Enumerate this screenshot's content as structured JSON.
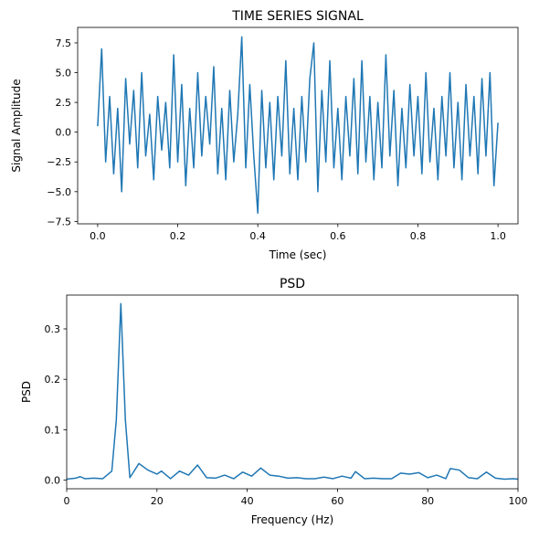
{
  "chart_data": [
    {
      "type": "line",
      "title": "TIME SERIES SIGNAL",
      "xlabel": "Time (sec)",
      "ylabel": "Signal Amplitude",
      "x": [
        0,
        0.01,
        0.02,
        0.03,
        0.04,
        0.05,
        0.06,
        0.07,
        0.08,
        0.09,
        0.1,
        0.11,
        0.12,
        0.13,
        0.14,
        0.15,
        0.16,
        0.17,
        0.18,
        0.19,
        0.2,
        0.21,
        0.22,
        0.23,
        0.24,
        0.25,
        0.26,
        0.27,
        0.28,
        0.29,
        0.3,
        0.31,
        0.32,
        0.33,
        0.34,
        0.35,
        0.36,
        0.37,
        0.38,
        0.39,
        0.4,
        0.41,
        0.42,
        0.43,
        0.44,
        0.45,
        0.46,
        0.47,
        0.48,
        0.49,
        0.5,
        0.51,
        0.52,
        0.53,
        0.54,
        0.55,
        0.56,
        0.57,
        0.58,
        0.59,
        0.6,
        0.61,
        0.62,
        0.63,
        0.64,
        0.65,
        0.66,
        0.67,
        0.68,
        0.69,
        0.7,
        0.71,
        0.72,
        0.73,
        0.74,
        0.75,
        0.76,
        0.77,
        0.78,
        0.79,
        0.8,
        0.81,
        0.82,
        0.83,
        0.84,
        0.85,
        0.86,
        0.87,
        0.88,
        0.89,
        0.9,
        0.91,
        0.92,
        0.93,
        0.94,
        0.95,
        0.96,
        0.97,
        0.98,
        0.99,
        1.0
      ],
      "series": [
        {
          "color": "#1f77b4",
          "values": [
            0.5,
            7.0,
            -2.5,
            3.0,
            -3.5,
            2.0,
            -5.0,
            4.5,
            -1.0,
            3.5,
            -3.0,
            5.0,
            -2.0,
            1.5,
            -4.0,
            3.0,
            -1.5,
            2.5,
            -3.0,
            6.5,
            -2.5,
            4.0,
            -4.5,
            2.0,
            -3.0,
            5.0,
            -2.0,
            3.0,
            -1.0,
            5.5,
            -3.5,
            2.0,
            -4.0,
            3.5,
            -2.5,
            1.5,
            8.0,
            -3.0,
            4.0,
            -2.0,
            -6.8,
            3.5,
            -3.0,
            2.5,
            -4.0,
            3.0,
            -2.0,
            6.0,
            -3.5,
            2.0,
            -4.0,
            3.0,
            -2.5,
            4.5,
            7.5,
            -5.0,
            3.5,
            -2.5,
            6.0,
            -3.0,
            2.0,
            -4.0,
            3.0,
            -2.0,
            4.5,
            -3.5,
            6.0,
            -2.5,
            3.0,
            -4.0,
            2.5,
            -3.0,
            6.5,
            -2.0,
            3.5,
            -4.5,
            2.0,
            -3.0,
            4.0,
            -2.0,
            3.0,
            -3.5,
            5.0,
            -2.5,
            2.0,
            -4.0,
            3.0,
            -2.0,
            5.0,
            -3.0,
            2.5,
            -4.0,
            4.0,
            -2.0,
            3.0,
            -3.5,
            4.5,
            -2.0,
            5.0,
            -4.5,
            0.8
          ]
        }
      ],
      "xlim": [
        -0.05,
        1.05
      ],
      "xticks": [
        {
          "value": 0,
          "label": "0.0"
        },
        0.2,
        0.4,
        0.6,
        0.8,
        {
          "value": 1,
          "label": "1.0"
        }
      ],
      "ylim": [
        -7.7,
        8.8
      ],
      "yticks": [
        {
          "value": -7.5,
          "label": "−7.5"
        },
        {
          "value": -5,
          "label": "−5.0"
        },
        {
          "value": -2.5,
          "label": "−2.5"
        },
        {
          "value": 0,
          "label": "0.0"
        },
        2.5,
        {
          "value": 5,
          "label": "5.0"
        },
        7.5
      ]
    },
    {
      "type": "line",
      "title": "PSD",
      "xlabel": "Frequency (Hz)",
      "ylabel": "PSD",
      "x": [
        0,
        2,
        3,
        4,
        6,
        8,
        10,
        11,
        12,
        13,
        14,
        16,
        18,
        20,
        21,
        23,
        25,
        27,
        29,
        31,
        33,
        35,
        37,
        39,
        41,
        43,
        45,
        47,
        49,
        51,
        53,
        55,
        57,
        59,
        61,
        63,
        64,
        66,
        68,
        70,
        72,
        74,
        76,
        78,
        80,
        82,
        84,
        85,
        87,
        89,
        91,
        93,
        95,
        97,
        99,
        100
      ],
      "series": [
        {
          "color": "#1f77b4",
          "values": [
            0.002,
            0.004,
            0.007,
            0.003,
            0.004,
            0.003,
            0.018,
            0.12,
            0.35,
            0.12,
            0.005,
            0.033,
            0.02,
            0.012,
            0.018,
            0.003,
            0.018,
            0.01,
            0.03,
            0.005,
            0.004,
            0.01,
            0.003,
            0.016,
            0.008,
            0.024,
            0.01,
            0.008,
            0.004,
            0.005,
            0.003,
            0.003,
            0.006,
            0.003,
            0.008,
            0.004,
            0.017,
            0.003,
            0.004,
            0.003,
            0.003,
            0.014,
            0.012,
            0.015,
            0.005,
            0.01,
            0.003,
            0.023,
            0.02,
            0.005,
            0.003,
            0.016,
            0.004,
            0.002,
            0.003,
            0.002
          ]
        }
      ],
      "xlim": [
        0,
        100
      ],
      "xticks": [
        0,
        20,
        40,
        60,
        80,
        100
      ],
      "ylim": [
        -0.017,
        0.367
      ],
      "yticks": [
        {
          "value": 0,
          "label": "0.0"
        },
        0.1,
        0.2,
        0.3
      ]
    }
  ]
}
